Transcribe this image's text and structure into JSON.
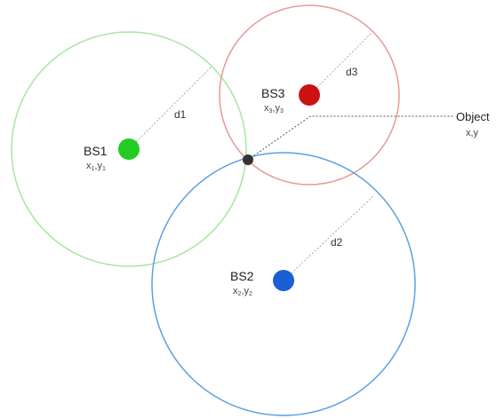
{
  "stations": [
    {
      "id": "bs1",
      "label": "BS1",
      "coord": "x1,y1",
      "distance_label": "d1",
      "color": "#22cc22",
      "ring_color": "#a8e6a0"
    },
    {
      "id": "bs2",
      "label": "BS2",
      "coord": "x2,y2",
      "distance_label": "d2",
      "color": "#1a5fd6",
      "ring_color": "#5aa0e0"
    },
    {
      "id": "bs3",
      "label": "BS3",
      "coord": "x3,y3",
      "distance_label": "d3",
      "color": "#cc1111",
      "ring_color": "#e89a9a"
    }
  ],
  "object": {
    "label": "Object",
    "coord": "x,y",
    "color": "#333333"
  }
}
